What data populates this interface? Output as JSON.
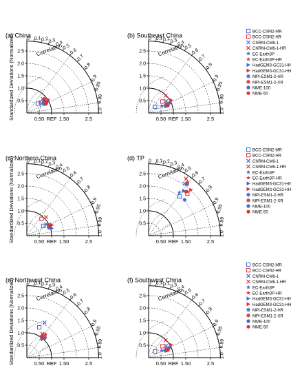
{
  "figure": {
    "ylabel": "Standardized Deviations (Normalized)",
    "legend_entries": [
      {
        "label": "BCC-CSM2-MR",
        "marker": "square-open",
        "color": "#3a6bd1"
      },
      {
        "label": "BCC-CSM2-HR",
        "marker": "square-open",
        "color": "#e03131"
      },
      {
        "label": "CNRM-CM6-1",
        "marker": "x",
        "color": "#3a6bd1"
      },
      {
        "label": "CNRM-CM6-1-HR",
        "marker": "x",
        "color": "#e03131"
      },
      {
        "label": "EC-Earth3P",
        "marker": "star",
        "color": "#3a6bd1"
      },
      {
        "label": "EC-Earth3P-HR",
        "marker": "star",
        "color": "#e03131"
      },
      {
        "label": "HadGEM3-GC31-HM",
        "marker": "triangle-right",
        "color": "#3a6bd1"
      },
      {
        "label": "HadGEM3-GC31-HH",
        "marker": "triangle-right",
        "color": "#e03131"
      },
      {
        "label": "MPI-ESM1-2-HR",
        "marker": "asterisk",
        "color": "#3a6bd1"
      },
      {
        "label": "MPI-ESM1-2-XR",
        "marker": "asterisk",
        "color": "#e03131"
      },
      {
        "label": "MME-100",
        "marker": "circle",
        "color": "#3a6bd1"
      },
      {
        "label": "MME-50",
        "marker": "circle",
        "color": "#e03131"
      }
    ],
    "legend_entries_d": [
      {
        "label": "BCC-CSM2-MR",
        "marker": "square-open",
        "color": "#3a6bd1"
      },
      {
        "label": "BCC-CSM2-HR",
        "marker": "square-open",
        "color": "#e03131"
      },
      {
        "label": "CNRM-CM6-1",
        "marker": "x",
        "color": "#3a6bd1"
      },
      {
        "label": "CNRM-CM6-1-HR",
        "marker": "x",
        "color": "#e03131"
      },
      {
        "label": "EC-Earth3P",
        "marker": "star",
        "color": "#3a6bd1"
      },
      {
        "label": "EC-Earth3P-HR",
        "marker": "star",
        "color": "#e03131"
      },
      {
        "label": "HadGEM3-GC31-HM",
        "marker": "triangle-right",
        "color": "#3a6bd1"
      },
      {
        "label": "HadGEM3-GC31-HH",
        "marker": "triangle-right",
        "color": "#e03131"
      },
      {
        "label": "MPI-ESM1-2-HR",
        "marker": "asterisk",
        "color": "#3a6bd1"
      },
      {
        "label": "MPI-ESM1-2-XR",
        "marker": "asterisk",
        "color": "#e03131"
      },
      {
        "label": "MME-100",
        "marker": "circle",
        "color": "#3a6bd1"
      },
      {
        "label": "MME-50",
        "marker": "circle",
        "color": "#e03131"
      }
    ]
  },
  "chart_data": [
    {
      "type": "scatter",
      "subtype": "taylor",
      "title": "(a) China",
      "ylabel": "Standardized Deviations (Normalized)",
      "corr_label": "Correlation",
      "ref_label": "REF",
      "std_ticks": [
        "0.50",
        "1.50",
        "2.5"
      ],
      "y_ticks": [
        "0.5",
        "1.0",
        "1.5",
        "2.0",
        "2.5"
      ],
      "corr_ticks": [
        0,
        0.1,
        0.2,
        0.3,
        0.4,
        0.5,
        0.6,
        0.7,
        0.8,
        0.9,
        0.95,
        0.99,
        1.0
      ],
      "std_max": 2.9,
      "legend": "right",
      "points": [
        {
          "model": "BCC-CSM2-MR",
          "std": 0.59,
          "corr": 0.77
        },
        {
          "model": "BCC-CSM2-HR",
          "std": 0.72,
          "corr": 0.8
        },
        {
          "model": "CNRM-CM6-1",
          "std": 0.72,
          "corr": 0.84
        },
        {
          "model": "CNRM-CM6-1-HR",
          "std": 0.86,
          "corr": 0.75
        },
        {
          "model": "EC-Earth3P",
          "std": 0.84,
          "corr": 0.85
        },
        {
          "model": "EC-Earth3P-HR",
          "std": 0.87,
          "corr": 0.85
        },
        {
          "model": "HadGEM3-GC31-HM",
          "std": 0.95,
          "corr": 0.88
        },
        {
          "model": "HadGEM3-GC31-HH",
          "std": 1.02,
          "corr": 0.85
        },
        {
          "model": "MPI-ESM1-2-HR",
          "std": 0.84,
          "corr": 0.8
        },
        {
          "model": "MPI-ESM1-2-XR",
          "std": 0.92,
          "corr": 0.79
        },
        {
          "model": "MME-100",
          "std": 0.81,
          "corr": 0.9
        },
        {
          "model": "MME-50",
          "std": 0.87,
          "corr": 0.9
        }
      ]
    },
    {
      "type": "scatter",
      "subtype": "taylor",
      "title": "(b) Southeast China",
      "ylabel": "",
      "corr_label": "Correlation",
      "ref_label": "REF",
      "std_ticks": [
        "0.50",
        "1.50",
        "2.5"
      ],
      "y_ticks": [
        "0.5",
        "1.0",
        "1.5",
        "2.0",
        "2.5"
      ],
      "corr_ticks": [
        0,
        0.1,
        0.2,
        0.3,
        0.4,
        0.5,
        0.6,
        0.7,
        0.8,
        0.9,
        0.95,
        0.99,
        1.0
      ],
      "std_max": 2.9,
      "legend": "right",
      "points": [
        {
          "model": "BCC-CSM2-MR",
          "std": 0.36,
          "corr": 0.72
        },
        {
          "model": "BCC-CSM2-HR",
          "std": 0.72,
          "corr": 0.77
        },
        {
          "model": "CNRM-CM6-1",
          "std": 0.86,
          "corr": 0.83
        },
        {
          "model": "CNRM-CM6-1-HR",
          "std": 0.98,
          "corr": 0.7
        },
        {
          "model": "EC-Earth3P",
          "std": 0.6,
          "corr": 0.88
        },
        {
          "model": "EC-Earth3P-HR",
          "std": 0.75,
          "corr": 0.92
        },
        {
          "model": "HadGEM3-GC31-HM",
          "std": 0.95,
          "corr": 0.91
        },
        {
          "model": "HadGEM3-GC31-HH",
          "std": 1.05,
          "corr": 0.87
        },
        {
          "model": "MPI-ESM1-2-HR",
          "std": 0.73,
          "corr": 0.92
        },
        {
          "model": "MPI-ESM1-2-XR",
          "std": 0.81,
          "corr": 0.9
        },
        {
          "model": "MME-100",
          "std": 0.78,
          "corr": 0.93
        },
        {
          "model": "MME-50",
          "std": 0.84,
          "corr": 0.93
        }
      ]
    },
    {
      "type": "scatter",
      "subtype": "taylor",
      "title": "(c) Northern China",
      "ylabel": "Standardized Deviations (Normalized)",
      "corr_label": "Correlation",
      "ref_label": "REF",
      "std_ticks": [
        "0.50",
        "1.50",
        "2.5"
      ],
      "y_ticks": [
        "0.5",
        "1.0",
        "1.5",
        "2.0",
        "2.5"
      ],
      "corr_ticks": [
        0,
        0.1,
        0.2,
        0.3,
        0.4,
        0.5,
        0.6,
        0.7,
        0.8,
        0.9,
        0.95,
        0.99,
        1.0
      ],
      "std_max": 2.9,
      "legend": "none",
      "points": [
        {
          "model": "BCC-CSM2-MR",
          "std": 0.77,
          "corr": 0.86
        },
        {
          "model": "BCC-CSM2-HR",
          "std": 0.9,
          "corr": 0.66
        },
        {
          "model": "CNRM-CM6-1",
          "std": 0.9,
          "corr": 0.86
        },
        {
          "model": "CNRM-CM6-1-HR",
          "std": 1.08,
          "corr": 0.72
        },
        {
          "model": "EC-Earth3P",
          "std": 1.02,
          "corr": 0.93
        },
        {
          "model": "EC-Earth3P-HR",
          "std": 0.97,
          "corr": 0.89
        },
        {
          "model": "HadGEM3-GC31-HM",
          "std": 1.05,
          "corr": 0.96
        },
        {
          "model": "HadGEM3-GC31-HH",
          "std": 1.1,
          "corr": 0.92
        },
        {
          "model": "MPI-ESM1-2-HR",
          "std": 0.98,
          "corr": 0.9
        },
        {
          "model": "MPI-ESM1-2-XR",
          "std": 1.03,
          "corr": 0.91
        },
        {
          "model": "MME-100",
          "std": 0.94,
          "corr": 0.94
        },
        {
          "model": "MME-50",
          "std": 1.0,
          "corr": 0.93
        }
      ]
    },
    {
      "type": "scatter",
      "subtype": "taylor",
      "title": "(d) TP",
      "ylabel": "",
      "corr_label": "Correlation",
      "ref_label": "REF",
      "std_ticks": [
        "0.50",
        "1.50",
        "2.5"
      ],
      "y_ticks": [
        "0.5",
        "1.0",
        "1.5",
        "2.0",
        "2.5"
      ],
      "corr_ticks": [
        0,
        0.1,
        0.2,
        0.3,
        0.4,
        0.5,
        0.6,
        0.7,
        0.8,
        0.9,
        0.95,
        0.99,
        1.0
      ],
      "std_max": 2.9,
      "legend": "right",
      "points": [
        {
          "model": "BCC-CSM2-MR",
          "std": 2.02,
          "corr": 0.62
        },
        {
          "model": "BCC-CSM2-HR",
          "std": 2.3,
          "corr": 0.68
        },
        {
          "model": "CNRM-CM6-1",
          "std": 2.55,
          "corr": 0.57
        },
        {
          "model": "CNRM-CM6-1-HR",
          "std": 2.75,
          "corr": 0.55
        },
        {
          "model": "EC-Earth3P",
          "std": 2.14,
          "corr": 0.58
        },
        {
          "model": "EC-Earth3P-HR",
          "std": 2.37,
          "corr": 0.66
        },
        {
          "model": "HadGEM3-GC31-HM",
          "std": 2.3,
          "corr": 0.62
        },
        {
          "model": "HadGEM3-GC31-HH",
          "std": 2.52,
          "corr": 0.68
        },
        {
          "model": "MPI-ESM1-2-HR",
          "std": 2.58,
          "corr": 0.6
        },
        {
          "model": "MPI-ESM1-2-XR",
          "std": 2.65,
          "corr": 0.59
        },
        {
          "model": "MME-100",
          "std": 2.05,
          "corr": 0.71
        },
        {
          "model": "MME-50",
          "std": 2.33,
          "corr": 0.65
        }
      ]
    },
    {
      "type": "scatter",
      "subtype": "taylor",
      "title": "(e) Northwest China",
      "ylabel": "Standardized Deviations (Normalized)",
      "corr_label": "Correlation",
      "ref_label": "REF",
      "std_ticks": [
        "0.50",
        "1.50",
        "2.5"
      ],
      "y_ticks": [
        "0.5",
        "1.0",
        "1.5",
        "2.0",
        "2.5"
      ],
      "corr_ticks": [
        0,
        0.1,
        0.2,
        0.3,
        0.4,
        0.5,
        0.6,
        0.7,
        0.8,
        0.9,
        0.95,
        0.99,
        1.0
      ],
      "std_max": 2.9,
      "legend": "right",
      "points": [
        {
          "model": "BCC-CSM2-MR",
          "std": 1.32,
          "corr": 0.38
        },
        {
          "model": "BCC-CSM2-HR",
          "std": 1.14,
          "corr": 0.62
        },
        {
          "model": "CNRM-CM6-1",
          "std": 1.58,
          "corr": 0.45
        },
        {
          "model": "CNRM-CM6-1-HR",
          "std": 1.15,
          "corr": 0.55
        },
        {
          "model": "EC-Earth3P",
          "std": 1.1,
          "corr": 0.68
        },
        {
          "model": "EC-Earth3P-HR",
          "std": 1.2,
          "corr": 0.63
        },
        {
          "model": "HadGEM3-GC31-HM",
          "std": 1.1,
          "corr": 0.6
        },
        {
          "model": "HadGEM3-GC31-HH",
          "std": 1.05,
          "corr": 0.66
        },
        {
          "model": "MPI-ESM1-2-HR",
          "std": 0.96,
          "corr": 0.62
        },
        {
          "model": "MPI-ESM1-2-XR",
          "std": 1.08,
          "corr": 0.58
        },
        {
          "model": "MME-100",
          "std": 1.06,
          "corr": 0.67
        },
        {
          "model": "MME-50",
          "std": 1.03,
          "corr": 0.64
        }
      ]
    },
    {
      "type": "scatter",
      "subtype": "taylor",
      "title": "(f) Southwest China",
      "ylabel": "",
      "corr_label": "Correlation",
      "ref_label": "REF",
      "std_ticks": [
        "0.50",
        "1.50",
        "2.5"
      ],
      "y_ticks": [
        "0.5",
        "1.0",
        "1.5",
        "2.0",
        "2.5"
      ],
      "corr_ticks": [
        0,
        0.1,
        0.2,
        0.3,
        0.4,
        0.5,
        0.6,
        0.7,
        0.8,
        0.9,
        0.95,
        0.99,
        1.0
      ],
      "std_max": 2.9,
      "legend": "right",
      "points": [
        {
          "model": "BCC-CSM2-MR",
          "std": 0.36,
          "corr": 0.72
        },
        {
          "model": "BCC-CSM2-HR",
          "std": 0.72,
          "corr": 0.77
        },
        {
          "model": "CNRM-CM6-1",
          "std": 0.86,
          "corr": 0.83
        },
        {
          "model": "CNRM-CM6-1-HR",
          "std": 0.98,
          "corr": 0.7
        },
        {
          "model": "EC-Earth3P",
          "std": 0.6,
          "corr": 0.88
        },
        {
          "model": "EC-Earth3P-HR",
          "std": 0.75,
          "corr": 0.92
        },
        {
          "model": "HadGEM3-GC31-HM",
          "std": 0.95,
          "corr": 0.91
        },
        {
          "model": "HadGEM3-GC31-HH",
          "std": 1.05,
          "corr": 0.87
        },
        {
          "model": "MPI-ESM1-2-HR",
          "std": 0.73,
          "corr": 0.92
        },
        {
          "model": "MPI-ESM1-2-XR",
          "std": 0.81,
          "corr": 0.9
        },
        {
          "model": "MME-100",
          "std": 0.78,
          "corr": 0.93
        },
        {
          "model": "MME-50",
          "std": 0.84,
          "corr": 0.93
        }
      ]
    }
  ]
}
